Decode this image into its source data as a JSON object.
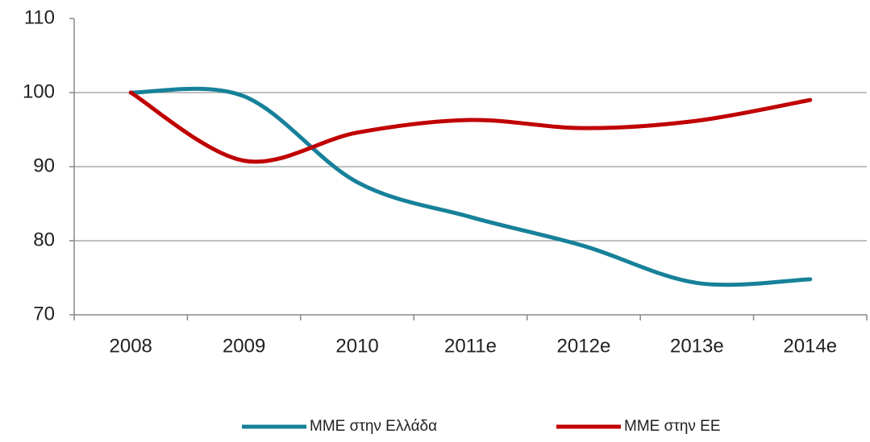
{
  "chart_data": {
    "type": "line",
    "categories": [
      "2008",
      "2009",
      "2010",
      "2011e",
      "2012e",
      "2013e",
      "2014e"
    ],
    "series": [
      {
        "name": "ΜΜΕ  στην Ελλάδα",
        "color": "#17819a",
        "values": [
          100,
          99.5,
          87.9,
          83.2,
          79.3,
          74.3,
          74.8
        ]
      },
      {
        "name": "ΜΜΕ  στην ΕΕ",
        "color": "#c00000",
        "values": [
          100,
          90.8,
          94.6,
          96.3,
          95.2,
          96.2,
          99.0
        ]
      }
    ],
    "ylim": [
      70,
      110
    ],
    "yticks": [
      70,
      80,
      90,
      100,
      110
    ],
    "grid": true,
    "legend": "bottom"
  }
}
